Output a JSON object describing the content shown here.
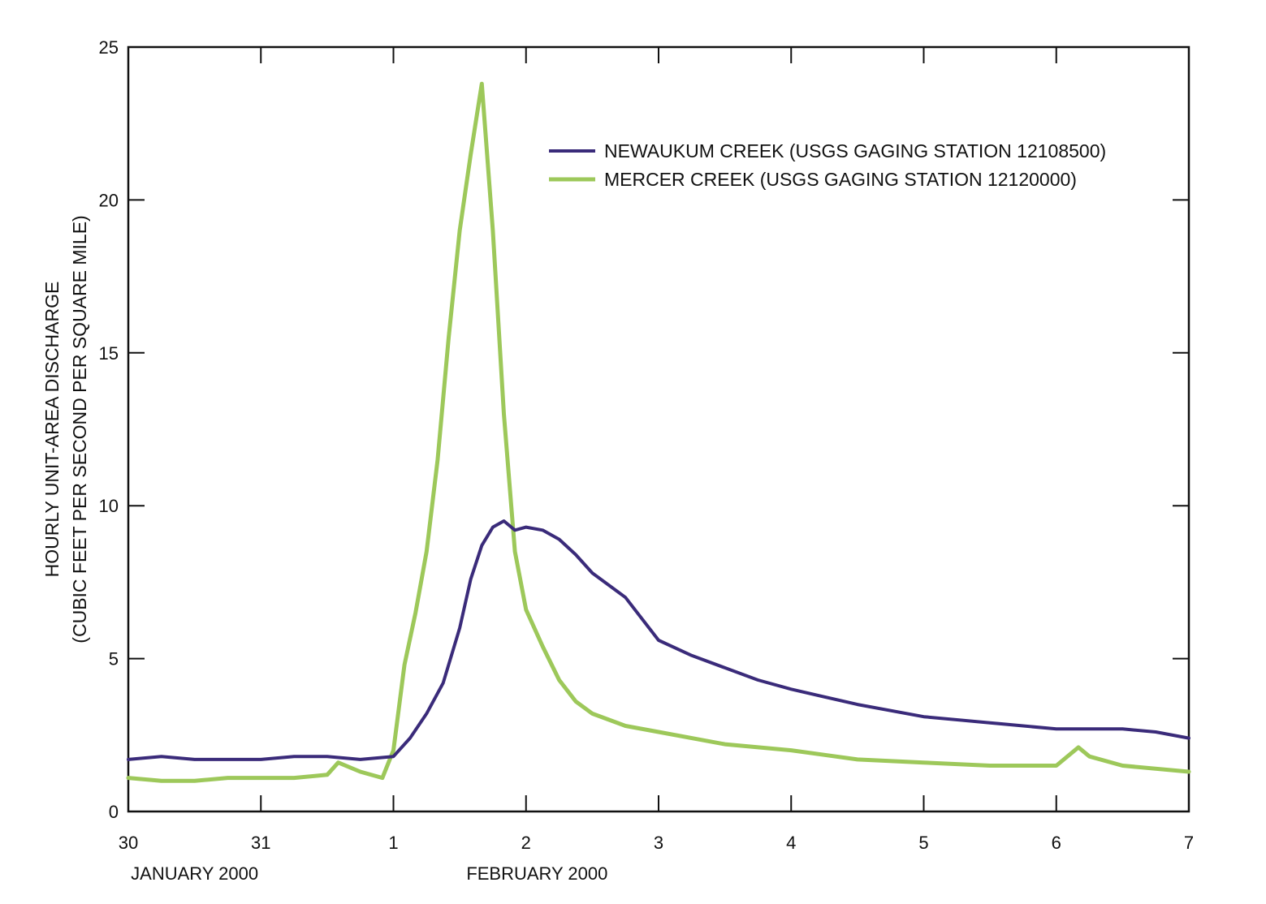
{
  "chart_data": {
    "type": "line",
    "ylabel_line1": "HOURLY UNIT-AREA DISCHARGE",
    "ylabel_line2": "(CUBIC FEET PER SECOND PER SQUARE MILE)",
    "ylim": [
      0,
      25
    ],
    "yticks": [
      0,
      5,
      10,
      15,
      20,
      25
    ],
    "xlim": [
      "2000-01-30",
      "2000-02-07"
    ],
    "xticks": [
      {
        "date": "2000-01-30",
        "label": "30"
      },
      {
        "date": "2000-01-31",
        "label": "31"
      },
      {
        "date": "2000-02-01",
        "label": "1"
      },
      {
        "date": "2000-02-02",
        "label": "2"
      },
      {
        "date": "2000-02-03",
        "label": "3"
      },
      {
        "date": "2000-02-04",
        "label": "4"
      },
      {
        "date": "2000-02-05",
        "label": "5"
      },
      {
        "date": "2000-02-06",
        "label": "6"
      },
      {
        "date": "2000-02-07",
        "label": "7"
      }
    ],
    "month_labels": [
      {
        "text": "JANUARY 2000",
        "date": "2000-01-30 12:00"
      },
      {
        "text": "FEBRUARY 2000",
        "date": "2000-02-02 02:00"
      }
    ],
    "legend_position": "top-right",
    "grid": false,
    "series": [
      {
        "name": "NEWAUKUM CREEK (USGS GAGING STATION 12108500)",
        "color": "#3a2b7a",
        "x": [
          "2000-01-30 00:00",
          "2000-01-30 06:00",
          "2000-01-30 12:00",
          "2000-01-30 18:00",
          "2000-01-31 00:00",
          "2000-01-31 06:00",
          "2000-01-31 12:00",
          "2000-01-31 18:00",
          "2000-02-01 00:00",
          "2000-02-01 03:00",
          "2000-02-01 06:00",
          "2000-02-01 09:00",
          "2000-02-01 12:00",
          "2000-02-01 14:00",
          "2000-02-01 16:00",
          "2000-02-01 18:00",
          "2000-02-01 20:00",
          "2000-02-01 22:00",
          "2000-02-02 00:00",
          "2000-02-02 03:00",
          "2000-02-02 06:00",
          "2000-02-02 09:00",
          "2000-02-02 12:00",
          "2000-02-02 18:00",
          "2000-02-03 00:00",
          "2000-02-03 06:00",
          "2000-02-03 12:00",
          "2000-02-03 18:00",
          "2000-02-04 00:00",
          "2000-02-04 12:00",
          "2000-02-05 00:00",
          "2000-02-05 12:00",
          "2000-02-06 00:00",
          "2000-02-06 12:00",
          "2000-02-06 18:00",
          "2000-02-07 00:00"
        ],
        "y": [
          1.7,
          1.8,
          1.7,
          1.7,
          1.7,
          1.8,
          1.8,
          1.7,
          1.8,
          2.4,
          3.2,
          4.2,
          6.0,
          7.6,
          8.7,
          9.3,
          9.5,
          9.2,
          9.3,
          9.2,
          8.9,
          8.4,
          7.8,
          7.0,
          5.6,
          5.1,
          4.7,
          4.3,
          4.0,
          3.5,
          3.1,
          2.9,
          2.7,
          2.7,
          2.6,
          2.4
        ]
      },
      {
        "name": "MERCER CREEK (USGS GAGING STATION 12120000)",
        "color": "#9dc85a",
        "x": [
          "2000-01-30 00:00",
          "2000-01-30 06:00",
          "2000-01-30 12:00",
          "2000-01-30 18:00",
          "2000-01-31 00:00",
          "2000-01-31 06:00",
          "2000-01-31 12:00",
          "2000-01-31 14:00",
          "2000-01-31 18:00",
          "2000-01-31 22:00",
          "2000-02-01 00:00",
          "2000-02-01 02:00",
          "2000-02-01 04:00",
          "2000-02-01 06:00",
          "2000-02-01 08:00",
          "2000-02-01 10:00",
          "2000-02-01 12:00",
          "2000-02-01 14:00",
          "2000-02-01 16:00",
          "2000-02-01 18:00",
          "2000-02-01 20:00",
          "2000-02-01 22:00",
          "2000-02-02 00:00",
          "2000-02-02 03:00",
          "2000-02-02 06:00",
          "2000-02-02 09:00",
          "2000-02-02 12:00",
          "2000-02-02 18:00",
          "2000-02-03 00:00",
          "2000-02-03 12:00",
          "2000-02-04 00:00",
          "2000-02-04 12:00",
          "2000-02-05 00:00",
          "2000-02-05 12:00",
          "2000-02-06 00:00",
          "2000-02-06 04:00",
          "2000-02-06 06:00",
          "2000-02-06 12:00",
          "2000-02-07 00:00"
        ],
        "y": [
          1.1,
          1.0,
          1.0,
          1.1,
          1.1,
          1.1,
          1.2,
          1.6,
          1.3,
          1.1,
          2.0,
          4.8,
          6.5,
          8.5,
          11.5,
          15.5,
          19.0,
          21.5,
          23.8,
          19.0,
          13.0,
          8.5,
          6.6,
          5.4,
          4.3,
          3.6,
          3.2,
          2.8,
          2.6,
          2.2,
          2.0,
          1.7,
          1.6,
          1.5,
          1.5,
          2.1,
          1.8,
          1.5,
          1.3
        ]
      }
    ]
  }
}
